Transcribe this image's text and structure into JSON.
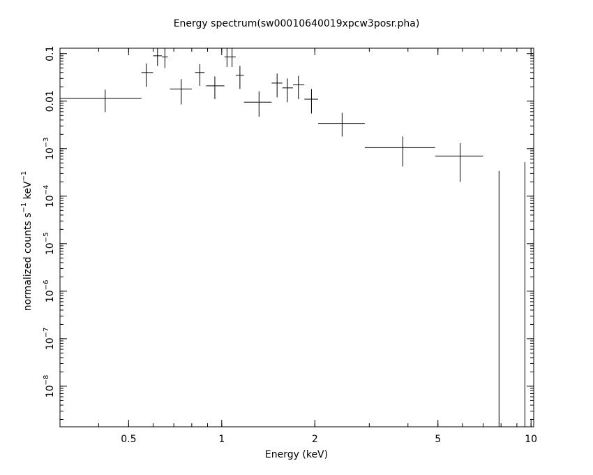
{
  "chart_data": {
    "type": "scatter",
    "title": "Energy spectrum(sw00010640019xpcw3posr.pha)",
    "xlabel": "Energy (keV)",
    "ylabel_parts": [
      "normalized counts s",
      "−1",
      " keV",
      "−1"
    ],
    "xscale": "log",
    "yscale": "log",
    "xlim": [
      0.3,
      10.2
    ],
    "ylim": [
      1.4e-09,
      0.13
    ],
    "x_ticks": [
      {
        "value": 0.5,
        "label": "0.5"
      },
      {
        "value": 1,
        "label": "1"
      },
      {
        "value": 2,
        "label": "2"
      },
      {
        "value": 5,
        "label": "5"
      },
      {
        "value": 10,
        "label": "10"
      }
    ],
    "y_ticks": [
      {
        "value": 0.1,
        "base": "0.1",
        "exp": ""
      },
      {
        "value": 0.01,
        "base": "0.01",
        "exp": ""
      },
      {
        "value": 0.001,
        "base": "10",
        "exp": "−3"
      },
      {
        "value": 0.0001,
        "base": "10",
        "exp": "−4"
      },
      {
        "value": 1e-05,
        "base": "10",
        "exp": "−5"
      },
      {
        "value": 1e-06,
        "base": "10",
        "exp": "−6"
      },
      {
        "value": 1e-07,
        "base": "10",
        "exp": "−7"
      },
      {
        "value": 1e-08,
        "base": "10",
        "exp": "−8"
      }
    ],
    "points": [
      {
        "xlo": 0.3,
        "x": 0.42,
        "xhi": 0.55,
        "y": 0.0115,
        "ylo": 0.0059,
        "yhi": 0.0175
      },
      {
        "xlo": 0.55,
        "x": 0.57,
        "xhi": 0.6,
        "y": 0.04,
        "ylo": 0.02,
        "yhi": 0.062
      },
      {
        "xlo": 0.6,
        "x": 0.62,
        "xhi": 0.64,
        "y": 0.09,
        "ylo": 0.055,
        "yhi": 0.13
      },
      {
        "xlo": 0.64,
        "x": 0.655,
        "xhi": 0.67,
        "y": 0.085,
        "ylo": 0.05,
        "yhi": 0.13
      },
      {
        "xlo": 0.68,
        "x": 0.74,
        "xhi": 0.8,
        "y": 0.018,
        "ylo": 0.0085,
        "yhi": 0.029
      },
      {
        "xlo": 0.82,
        "x": 0.85,
        "xhi": 0.88,
        "y": 0.04,
        "ylo": 0.021,
        "yhi": 0.06
      },
      {
        "xlo": 0.89,
        "x": 0.95,
        "xhi": 1.02,
        "y": 0.021,
        "ylo": 0.011,
        "yhi": 0.033
      },
      {
        "xlo": 1.02,
        "x": 1.04,
        "xhi": 1.06,
        "y": 0.085,
        "ylo": 0.052,
        "yhi": 0.13
      },
      {
        "xlo": 1.06,
        "x": 1.08,
        "xhi": 1.11,
        "y": 0.085,
        "ylo": 0.052,
        "yhi": 0.13
      },
      {
        "xlo": 1.11,
        "x": 1.145,
        "xhi": 1.18,
        "y": 0.035,
        "ylo": 0.018,
        "yhi": 0.055
      },
      {
        "xlo": 1.18,
        "x": 1.32,
        "xhi": 1.45,
        "y": 0.0095,
        "ylo": 0.0047,
        "yhi": 0.016
      },
      {
        "xlo": 1.45,
        "x": 1.51,
        "xhi": 1.57,
        "y": 0.024,
        "ylo": 0.012,
        "yhi": 0.038
      },
      {
        "xlo": 1.57,
        "x": 1.63,
        "xhi": 1.7,
        "y": 0.019,
        "ylo": 0.0095,
        "yhi": 0.03
      },
      {
        "xlo": 1.7,
        "x": 1.77,
        "xhi": 1.85,
        "y": 0.022,
        "ylo": 0.011,
        "yhi": 0.034
      },
      {
        "xlo": 1.85,
        "x": 1.95,
        "xhi": 2.05,
        "y": 0.011,
        "ylo": 0.0055,
        "yhi": 0.018
      },
      {
        "xlo": 2.05,
        "x": 2.45,
        "xhi": 2.9,
        "y": 0.0034,
        "ylo": 0.0018,
        "yhi": 0.0057
      },
      {
        "xlo": 2.9,
        "x": 3.85,
        "xhi": 4.9,
        "y": 0.00105,
        "ylo": 0.00042,
        "yhi": 0.0018
      },
      {
        "xlo": 4.9,
        "x": 5.9,
        "xhi": 7.0,
        "y": 0.0007,
        "ylo": 0.0002,
        "yhi": 0.0013
      },
      {
        "xlo": 7.88,
        "x": 7.88,
        "xhi": 7.88,
        "y": 0.00034,
        "ylo": 1.4e-09,
        "yhi": 0.00034
      },
      {
        "xlo": 9.55,
        "x": 9.55,
        "xhi": 9.55,
        "y": 0.00052,
        "ylo": 1.4e-09,
        "yhi": 0.00052
      }
    ]
  }
}
